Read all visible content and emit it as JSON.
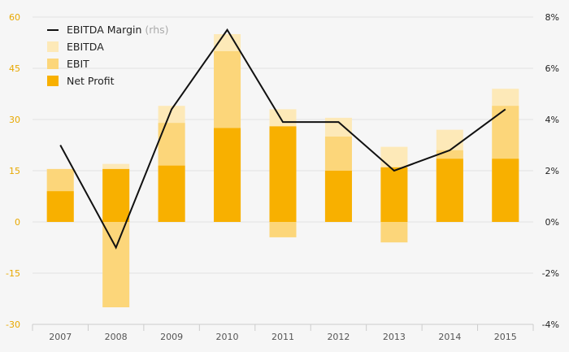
{
  "chart_data": {
    "type": "bar",
    "categories": [
      "2007",
      "2008",
      "2009",
      "2010",
      "2011",
      "2012",
      "2013",
      "2014",
      "2015"
    ],
    "series": [
      {
        "name": "EBITDA",
        "type": "bar",
        "axis": "left",
        "color": "#fde9b8",
        "values": [
          15.5,
          17,
          34,
          55,
          33,
          30.5,
          22,
          27,
          39
        ]
      },
      {
        "name": "EBIT",
        "type": "bar",
        "axis": "left",
        "color": "#fcd67a",
        "values": [
          15.5,
          -25,
          29,
          50,
          -4.5,
          25,
          -6,
          21,
          34
        ]
      },
      {
        "name": "Net Profit",
        "type": "bar",
        "axis": "left",
        "color": "#f8b000",
        "values": [
          9,
          15.5,
          16.5,
          27.5,
          28,
          15,
          16,
          18.5,
          18.5
        ]
      },
      {
        "name": "EBITDA Margin",
        "type": "line",
        "axis": "right",
        "color": "#111111",
        "values": [
          3.0,
          -1.0,
          4.4,
          7.5,
          3.9,
          3.9,
          2.0,
          2.8,
          4.4
        ]
      }
    ],
    "left_axis": {
      "ylim": [
        -30,
        60
      ],
      "ticks": [
        "60",
        "45",
        "30",
        "15",
        "0",
        "-15",
        "-30"
      ]
    },
    "right_axis": {
      "ylim": [
        -4,
        8
      ],
      "ticks": [
        "8%",
        "6%",
        "4%",
        "2%",
        "0%",
        "-2%",
        "-4%"
      ]
    },
    "grid": true,
    "legend_position": "top-left"
  },
  "legend": {
    "margin_label": "EBITDA Margin",
    "margin_note": "(rhs)",
    "ebitda_label": "EBITDA",
    "ebit_label": "EBIT",
    "net_label": "Net Profit"
  },
  "colors": {
    "left_tick": "#e8a800",
    "right_tick": "#222222",
    "x_tick": "#555555",
    "grid": "#e3e3e3"
  }
}
